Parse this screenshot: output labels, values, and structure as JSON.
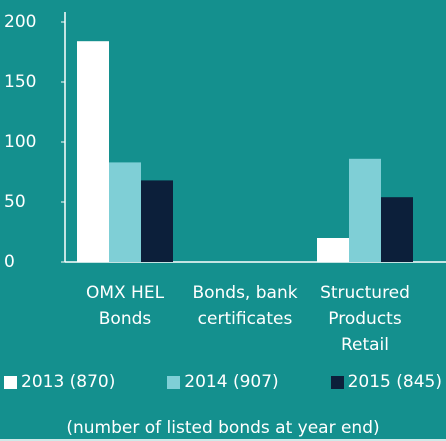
{
  "chart_data": {
    "type": "bar",
    "categories": [
      "OMX HEL Bonds",
      "Bonds, bank certificates",
      "Structured Products Retail"
    ],
    "series": [
      {
        "name": "2013 (870)",
        "color": "#ffffff",
        "values": [
          184,
          0,
          20
        ]
      },
      {
        "name": "2014 (907)",
        "color": "#7fcfd6",
        "values": [
          83,
          0,
          86
        ]
      },
      {
        "name": "2015 (845)",
        "color": "#0c1f3a",
        "values": [
          68,
          0,
          54
        ]
      }
    ],
    "ylim": [
      0,
      200
    ],
    "yticks": [
      0,
      50,
      100,
      150,
      200
    ],
    "grid": false,
    "note": "(number of listed bonds at year end)"
  }
}
